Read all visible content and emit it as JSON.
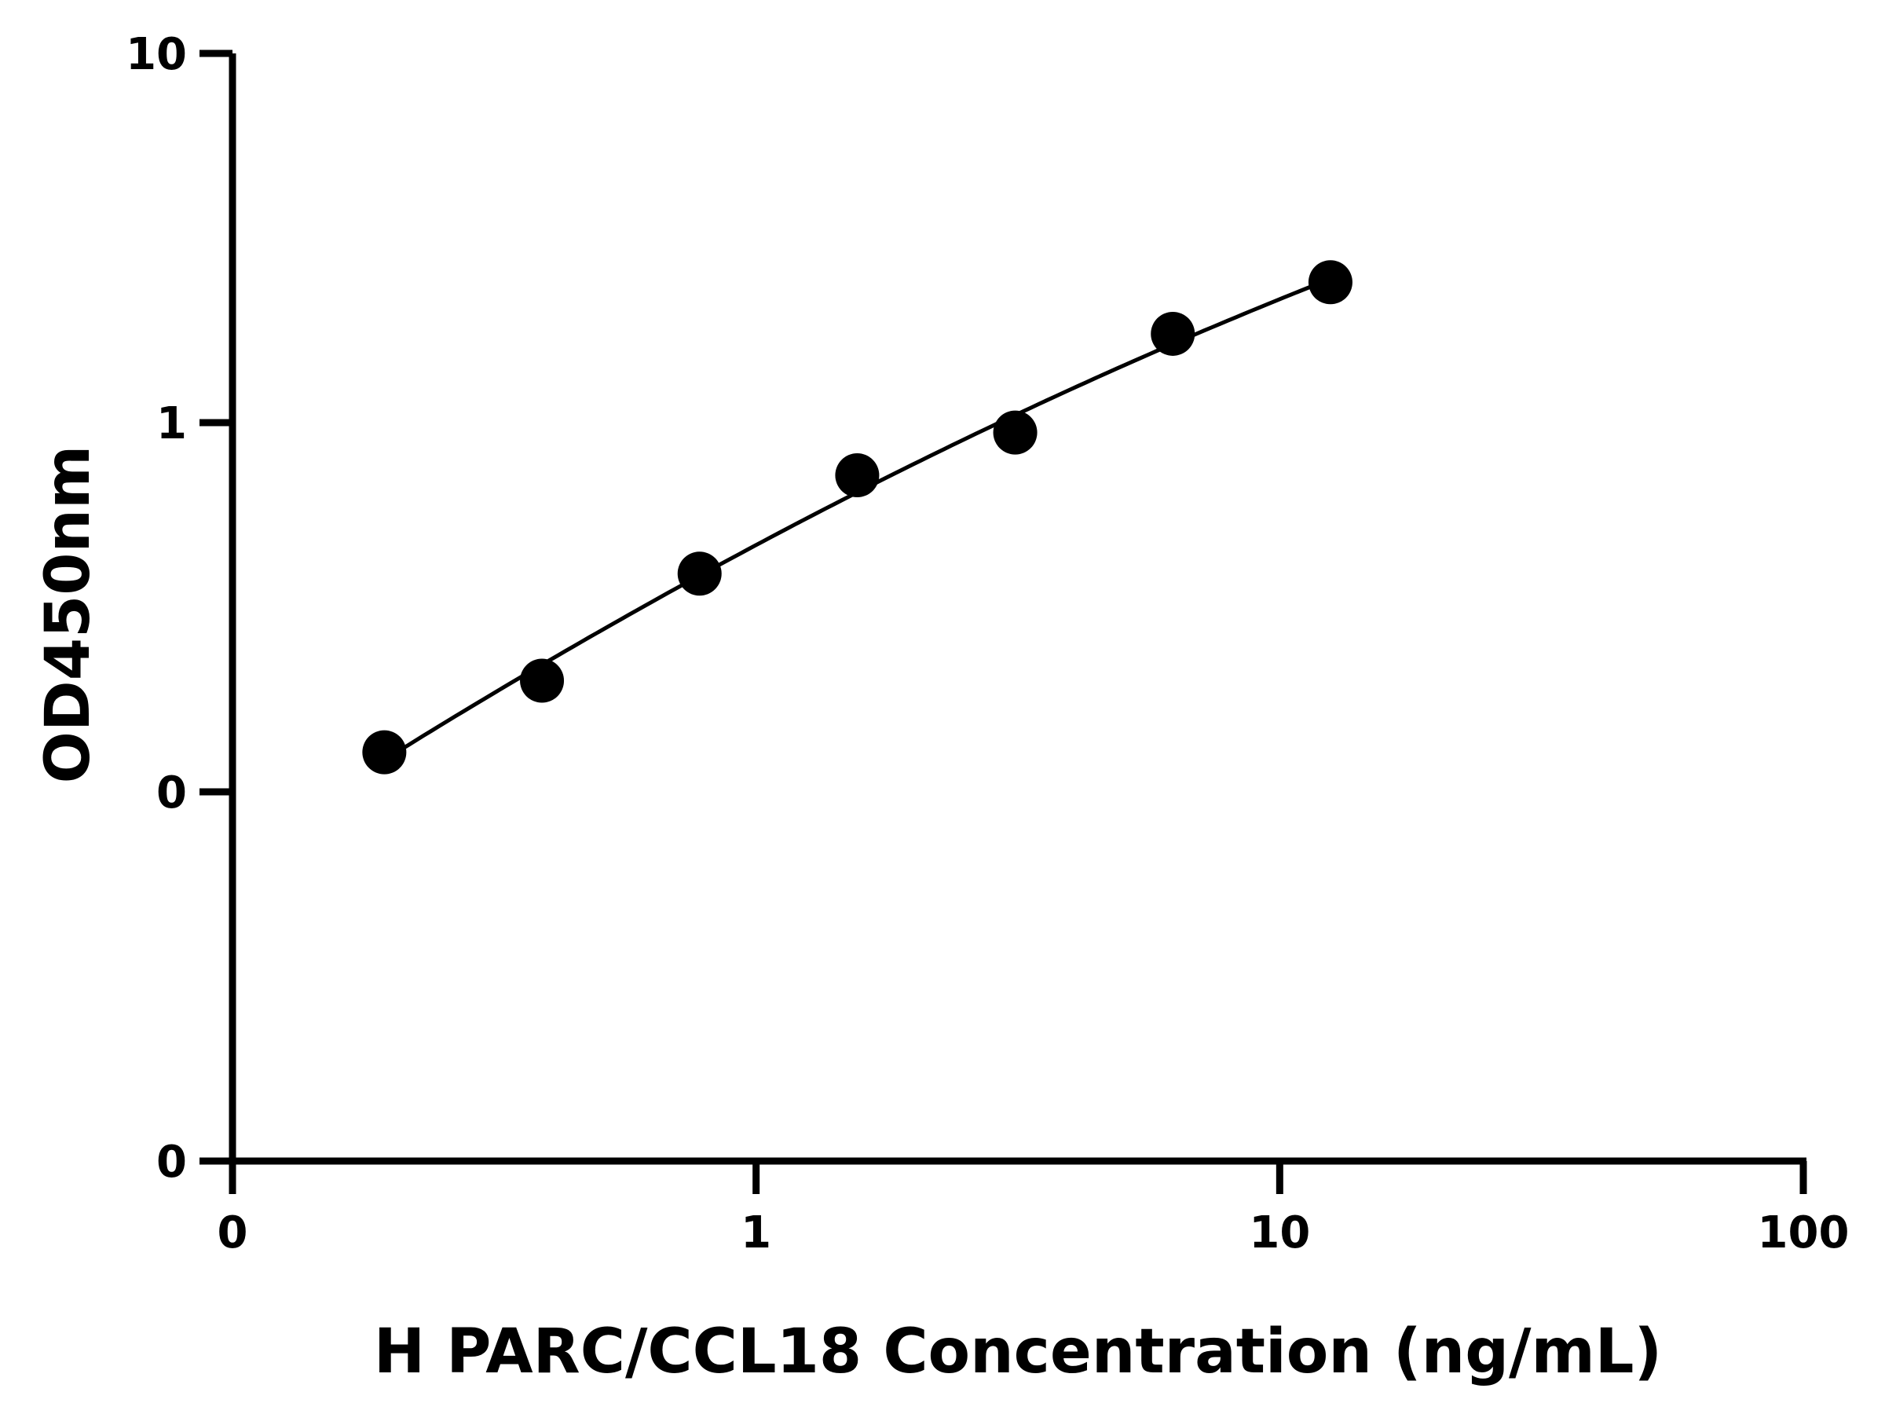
{
  "chart_data": {
    "type": "scatter",
    "title": "",
    "xlabel": "H PARC/CCL18 Concentration (ng/mL)",
    "ylabel": "OD450nm",
    "x_scale": "log",
    "y_scale": "log",
    "xlim": [
      0.1,
      100
    ],
    "ylim": [
      0.01,
      10
    ],
    "x_ticks": [
      {
        "value": 0.1,
        "label": "0"
      },
      {
        "value": 1,
        "label": "1"
      },
      {
        "value": 10,
        "label": "10"
      },
      {
        "value": 100,
        "label": "100"
      }
    ],
    "y_ticks": [
      {
        "value": 0.01,
        "label": "0"
      },
      {
        "value": 0.1,
        "label": "0"
      },
      {
        "value": 1,
        "label": "1"
      },
      {
        "value": 10,
        "label": "10"
      }
    ],
    "grid": false,
    "legend": "none",
    "colors": {
      "points": "#000000",
      "curve": "#000000",
      "axes": "#000000"
    },
    "series": [
      {
        "x": [
          0.195,
          0.39,
          0.78,
          1.56,
          3.125,
          6.25,
          12.5
        ],
        "y": [
          0.128,
          0.2,
          0.39,
          0.72,
          0.94,
          1.74,
          2.4
        ],
        "fit": "smooth curve through points"
      }
    ]
  }
}
